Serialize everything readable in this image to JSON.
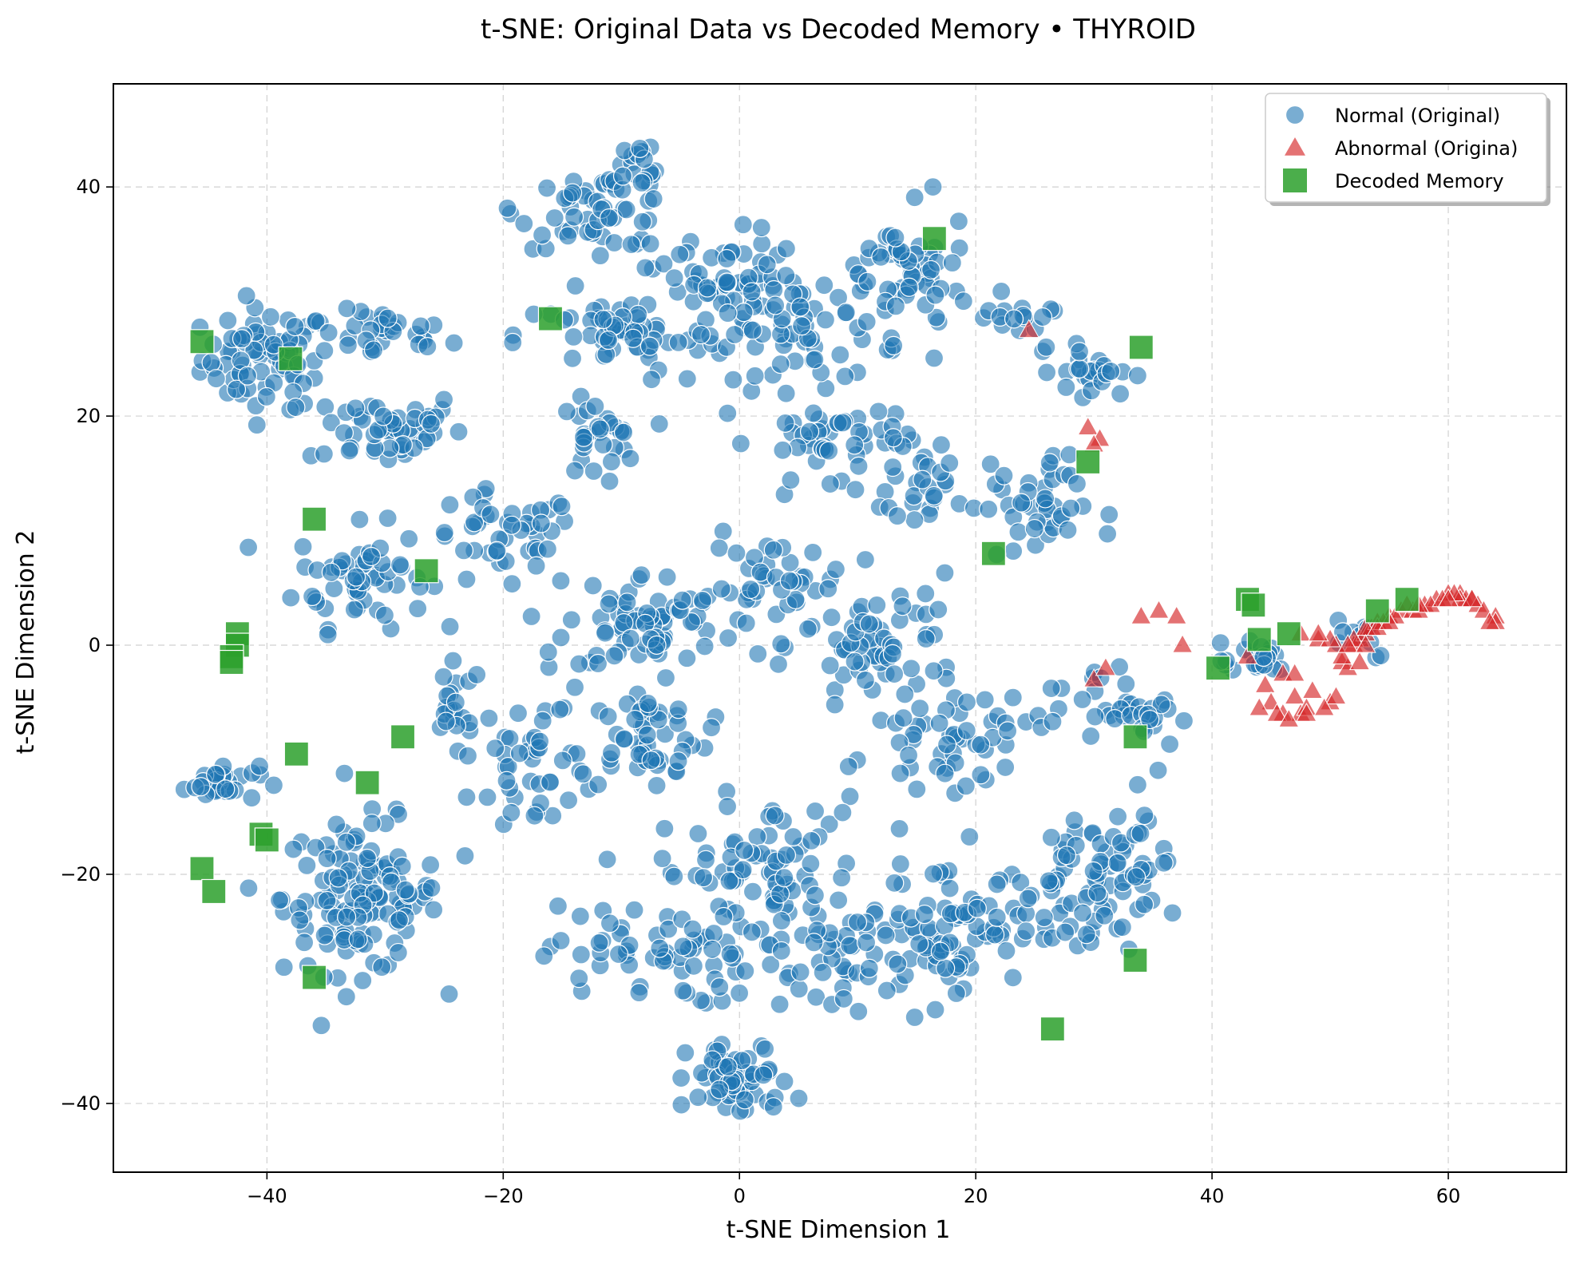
{
  "chart_data": {
    "type": "scatter",
    "title": "t-SNE: Original Data vs Decoded Memory • THYROID",
    "xlabel": "t-SNE Dimension 1",
    "ylabel": "t-SNE Dimension 2",
    "xlim": [
      -53,
      70
    ],
    "ylim": [
      -46,
      49
    ],
    "xticks": [
      -40,
      -20,
      0,
      20,
      40,
      60
    ],
    "yticks": [
      -40,
      -20,
      0,
      20,
      40
    ],
    "xtick_labels": [
      "−40",
      "−20",
      "0",
      "20",
      "40",
      "60"
    ],
    "ytick_labels": [
      "−40",
      "−20",
      "0",
      "20",
      "40"
    ],
    "grid": true,
    "legend_position": "top-right",
    "series": [
      {
        "name": "Normal (Original)",
        "marker": "circle",
        "color": "#1f77b4",
        "clusters": [
          {
            "center": [
              -40,
              25
            ],
            "spread": [
              5,
              4
            ],
            "count": 75
          },
          {
            "center": [
              -30,
              27
            ],
            "spread": [
              5,
              2
            ],
            "count": 30
          },
          {
            "center": [
              -30,
              19
            ],
            "spread": [
              6,
              3
            ],
            "count": 50
          },
          {
            "center": [
              -32,
              6
            ],
            "spread": [
              5,
              4
            ],
            "count": 55
          },
          {
            "center": [
              -44,
              -12
            ],
            "spread": [
              3,
              1.5
            ],
            "count": 30
          },
          {
            "center": [
              -32,
              -22
            ],
            "spread": [
              6,
              6
            ],
            "count": 130
          },
          {
            "center": [
              -24,
              -6
            ],
            "spread": [
              2,
              4
            ],
            "count": 20
          },
          {
            "center": [
              -20,
              9
            ],
            "spread": [
              6,
              4
            ],
            "count": 45
          },
          {
            "center": [
              -17,
              -10
            ],
            "spread": [
              5,
              6
            ],
            "count": 45
          },
          {
            "center": [
              -12,
              38
            ],
            "spread": [
              6,
              3
            ],
            "count": 55
          },
          {
            "center": [
              -12,
              18
            ],
            "spread": [
              3,
              3
            ],
            "count": 30
          },
          {
            "center": [
              -10,
              27
            ],
            "spread": [
              8,
              3
            ],
            "count": 60
          },
          {
            "center": [
              -8,
              42
            ],
            "spread": [
              2,
              2
            ],
            "count": 15
          },
          {
            "center": [
              -8,
              2
            ],
            "spread": [
              6,
              4
            ],
            "count": 70
          },
          {
            "center": [
              -8,
              -8
            ],
            "spread": [
              5,
              4
            ],
            "count": 50
          },
          {
            "center": [
              -8,
              -27
            ],
            "spread": [
              8,
              4
            ],
            "count": 60
          },
          {
            "center": [
              -2,
              32
            ],
            "spread": [
              5,
              4
            ],
            "count": 40
          },
          {
            "center": [
              0,
              -38
            ],
            "spread": [
              4,
              3
            ],
            "count": 60
          },
          {
            "center": [
              2,
              -20
            ],
            "spread": [
              8,
              6
            ],
            "count": 90
          },
          {
            "center": [
              3,
              5
            ],
            "spread": [
              5,
              4
            ],
            "count": 40
          },
          {
            "center": [
              5,
              28
            ],
            "spread": [
              8,
              5
            ],
            "count": 80
          },
          {
            "center": [
              8,
              18
            ],
            "spread": [
              6,
              3
            ],
            "count": 45
          },
          {
            "center": [
              10,
              -28
            ],
            "spread": [
              6,
              5
            ],
            "count": 50
          },
          {
            "center": [
              12,
              0
            ],
            "spread": [
              6,
              5
            ],
            "count": 60
          },
          {
            "center": [
              14,
              32
            ],
            "spread": [
              5,
              5
            ],
            "count": 55
          },
          {
            "center": [
              16,
              14
            ],
            "spread": [
              5,
              4
            ],
            "count": 30
          },
          {
            "center": [
              18,
              -8
            ],
            "spread": [
              6,
              4
            ],
            "count": 50
          },
          {
            "center": [
              18,
              -24
            ],
            "spread": [
              5,
              5
            ],
            "count": 60
          },
          {
            "center": [
              22,
              28
            ],
            "spread": [
              4,
              2
            ],
            "count": 15
          },
          {
            "center": [
              25,
              12
            ],
            "spread": [
              4,
              4
            ],
            "count": 40
          },
          {
            "center": [
              28,
              -22
            ],
            "spread": [
              6,
              6
            ],
            "count": 70
          },
          {
            "center": [
              30,
              24
            ],
            "spread": [
              3,
              2
            ],
            "count": 25
          },
          {
            "center": [
              30,
              -5
            ],
            "spread": [
              4,
              3
            ],
            "count": 25
          },
          {
            "center": [
              33,
              -18
            ],
            "spread": [
              3,
              5
            ],
            "count": 25
          },
          {
            "center": [
              36,
              -7
            ],
            "spread": [
              2,
              3
            ],
            "count": 15
          },
          {
            "center": [
              43,
              -1
            ],
            "spread": [
              4,
              2
            ],
            "count": 20
          },
          {
            "center": [
              52,
              1
            ],
            "spread": [
              3,
              2
            ],
            "count": 10
          }
        ]
      },
      {
        "name": "Abnormal (Origina)",
        "marker": "triangle",
        "color": "#d62728",
        "points": [
          [
            24.5,
            27.5
          ],
          [
            29.5,
            19.0
          ],
          [
            30.5,
            18.0
          ],
          [
            30.0,
            17.5
          ],
          [
            34.0,
            2.5
          ],
          [
            35.5,
            3.0
          ],
          [
            37.0,
            2.5
          ],
          [
            37.5,
            0.0
          ],
          [
            30.0,
            -3.0
          ],
          [
            31.0,
            -2.0
          ],
          [
            43.0,
            -1.0
          ],
          [
            44.5,
            -3.5
          ],
          [
            45.0,
            -5.0
          ],
          [
            46.0,
            -6.0
          ],
          [
            46.0,
            -2.5
          ],
          [
            47.0,
            -4.5
          ],
          [
            47.5,
            -6.0
          ],
          [
            48.0,
            -5.5
          ],
          [
            47.0,
            -2.5
          ],
          [
            48.5,
            -4.0
          ],
          [
            49.0,
            0.5
          ],
          [
            50.0,
            -5.0
          ],
          [
            50.5,
            -4.5
          ],
          [
            50.5,
            0.0
          ],
          [
            51.0,
            -1.5
          ],
          [
            51.5,
            -2.0
          ],
          [
            52.0,
            0.0
          ],
          [
            52.5,
            0.5
          ],
          [
            53.0,
            1.0
          ],
          [
            53.5,
            1.5
          ],
          [
            54.0,
            2.0
          ],
          [
            55.0,
            2.5
          ],
          [
            56.0,
            3.0
          ],
          [
            57.0,
            3.0
          ],
          [
            58.0,
            3.5
          ],
          [
            59.0,
            4.0
          ],
          [
            60.0,
            4.5
          ],
          [
            61.0,
            4.5
          ],
          [
            61.5,
            4.0
          ],
          [
            62.0,
            4.0
          ],
          [
            62.5,
            3.5
          ],
          [
            63.0,
            3.0
          ],
          [
            64.0,
            2.5
          ],
          [
            64.0,
            2.0
          ],
          [
            63.5,
            2.0
          ],
          [
            61.0,
            4.0
          ],
          [
            60.5,
            4.5
          ],
          [
            58.5,
            3.5
          ],
          [
            57.5,
            3.0
          ],
          [
            55.5,
            2.5
          ],
          [
            54.5,
            2.0
          ],
          [
            53.0,
            1.5
          ],
          [
            52.0,
            0.5
          ],
          [
            51.0,
            -1.0
          ],
          [
            50.0,
            0.5
          ],
          [
            49.5,
            -5.5
          ],
          [
            48.0,
            -6.0
          ],
          [
            45.5,
            -6.0
          ],
          [
            44.0,
            -5.5
          ],
          [
            46.5,
            -6.5
          ],
          [
            47.5,
            1.0
          ],
          [
            49.0,
            1.0
          ],
          [
            51.5,
            0.0
          ],
          [
            52.5,
            -1.5
          ],
          [
            53.0,
            0.0
          ],
          [
            54.0,
            1.5
          ],
          [
            55.0,
            2.0
          ],
          [
            56.5,
            3.5
          ],
          [
            57.5,
            3.5
          ],
          [
            59.5,
            4.0
          ],
          [
            60.0,
            4.0
          ],
          [
            62.0,
            4.0
          ]
        ]
      },
      {
        "name": "Decoded Memory",
        "marker": "square",
        "color": "#2ca02c",
        "points": [
          [
            -45.5,
            26.5
          ],
          [
            -38.0,
            25.0
          ],
          [
            -16.0,
            28.5
          ],
          [
            -36.0,
            11.0
          ],
          [
            -26.5,
            6.5
          ],
          [
            -42.5,
            1.0
          ],
          [
            -42.5,
            0.0
          ],
          [
            -43.0,
            -1.0
          ],
          [
            -43.0,
            -1.5
          ],
          [
            -37.5,
            -9.5
          ],
          [
            -28.5,
            -8.0
          ],
          [
            -31.5,
            -12.0
          ],
          [
            -40.5,
            -16.5
          ],
          [
            -40.0,
            -17.0
          ],
          [
            -45.5,
            -19.5
          ],
          [
            -44.5,
            -21.5
          ],
          [
            -36.0,
            -29.0
          ],
          [
            16.5,
            35.5
          ],
          [
            34.0,
            26.0
          ],
          [
            29.5,
            16.0
          ],
          [
            21.5,
            8.0
          ],
          [
            43.0,
            4.0
          ],
          [
            43.5,
            3.5
          ],
          [
            44.0,
            0.5
          ],
          [
            46.5,
            1.0
          ],
          [
            54.0,
            3.0
          ],
          [
            56.5,
            4.0
          ],
          [
            40.5,
            -2.0
          ],
          [
            33.5,
            -8.0
          ],
          [
            33.5,
            -27.5
          ],
          [
            26.5,
            -33.5
          ]
        ]
      }
    ]
  }
}
